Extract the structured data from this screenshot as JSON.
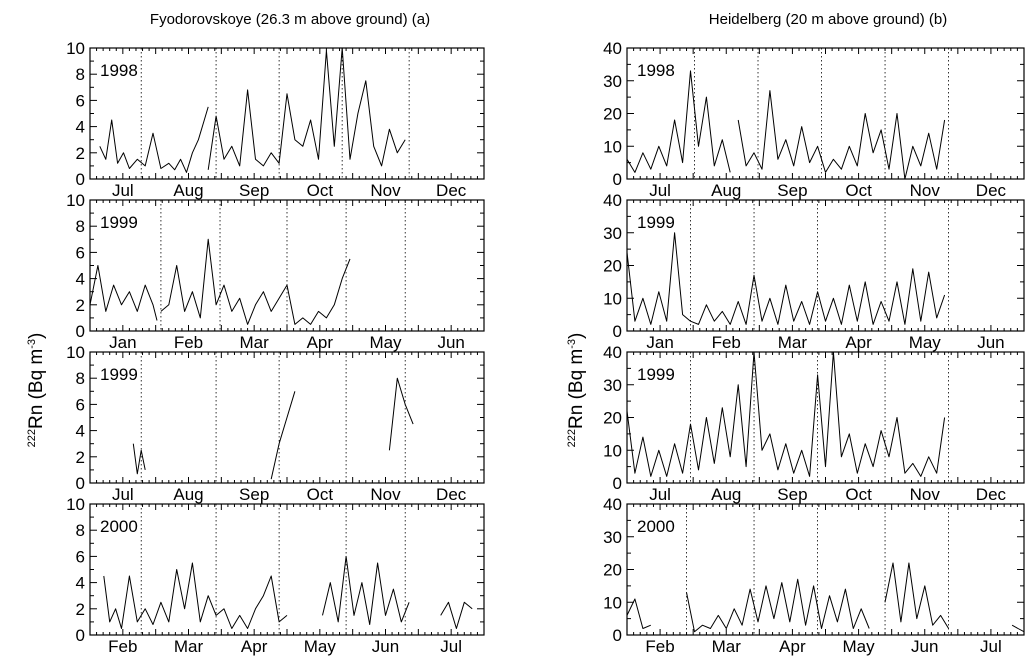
{
  "figure": {
    "panel_a_title": "Fyodorovskoye (26.3 m above ground) (a)",
    "panel_b_title": "Heidelberg (20 m above ground) (b)",
    "ylabel_sup": "222",
    "ylabel_main": "Rn (Bq m",
    "ylabel_exp": "-3",
    "ylabel_close": ")"
  },
  "chart_data": [
    {
      "type": "line",
      "title": "Fyodorovskoye (26.3 m above ground) (a)",
      "ylabel": "222Rn (Bq m-3)",
      "ylim": [
        0,
        10
      ],
      "yticks": [
        0,
        2,
        4,
        6,
        8,
        10
      ],
      "panels": [
        {
          "label": "1998",
          "months": [
            "Jul",
            "Aug",
            "Sep",
            "Oct",
            "Nov",
            "Dec"
          ],
          "series": [
            {
              "x": [
                0.25,
                0.4,
                0.55,
                0.7,
                0.85,
                1.0,
                1.2,
                1.4,
                1.6,
                1.8,
                2.0,
                2.15,
                2.3,
                2.45,
                2.6,
                2.75,
                2.9,
                3.0
              ],
              "y": [
                2.5,
                1.5,
                4.5,
                1.2,
                2.0,
                0.8,
                1.5,
                1.0,
                3.5,
                0.8,
                1.2,
                0.7,
                1.5,
                0.5,
                2.0,
                3.0,
                4.5,
                5.5
              ]
            },
            {
              "x": [
                3.0,
                3.2,
                3.4,
                3.6,
                3.8,
                4.0,
                4.2,
                4.4,
                4.6,
                4.8,
                5.0,
                5.2,
                5.4,
                5.6,
                5.8,
                6.0,
                6.2,
                6.4,
                6.6,
                6.8,
                7.0,
                7.2,
                7.4,
                7.6,
                7.8,
                8.0
              ],
              "y": [
                0.7,
                4.8,
                1.5,
                2.5,
                1.0,
                6.8,
                1.5,
                1.0,
                2.0,
                1.2,
                6.5,
                3.0,
                2.5,
                4.5,
                1.5,
                9.8,
                2.5,
                10.0,
                1.5,
                5.0,
                7.5,
                2.5,
                1.0,
                3.8,
                2.0,
                3.0
              ]
            }
          ]
        },
        {
          "label": "1999",
          "months": [
            "Jan",
            "Feb",
            "Mar",
            "Apr",
            "May",
            "Jun"
          ],
          "series": [
            {
              "x": [
                0.0,
                0.2,
                0.4,
                0.6,
                0.8,
                1.0,
                1.2,
                1.4,
                1.6,
                1.7
              ],
              "y": [
                2.0,
                5.0,
                1.5,
                3.5,
                2.0,
                3.0,
                1.5,
                3.5,
                2.0,
                0.8
              ]
            },
            {
              "x": [
                1.8,
                2.0,
                2.2,
                2.4,
                2.6,
                2.8,
                3.0,
                3.2,
                3.4,
                3.6,
                3.8,
                4.0,
                4.2,
                4.4,
                4.6,
                4.8,
                5.0,
                5.2,
                5.4,
                5.6,
                5.8,
                6.0,
                6.2,
                6.4,
                6.6
              ],
              "y": [
                1.5,
                2.0,
                5.0,
                1.5,
                3.0,
                1.0,
                7.0,
                2.0,
                3.5,
                1.5,
                2.5,
                0.5,
                2.0,
                3.0,
                1.5,
                2.5,
                3.5,
                0.5,
                1.0,
                0.5,
                1.5,
                1.0,
                2.0,
                4.0,
                5.5
              ]
            }
          ]
        },
        {
          "label": "1999",
          "months": [
            "Jul",
            "Aug",
            "Sep",
            "Oct",
            "Nov",
            "Dec"
          ],
          "series": [
            {
              "x": [
                1.1,
                1.2,
                1.3,
                1.4
              ],
              "y": [
                3.0,
                0.7,
                2.5,
                1.0
              ]
            },
            {
              "x": [
                4.6,
                4.8,
                5.0,
                5.2
              ],
              "y": [
                0.3,
                3.0,
                5.0,
                7.0
              ]
            },
            {
              "x": [
                7.6,
                7.8,
                8.0,
                8.2
              ],
              "y": [
                2.5,
                8.0,
                6.0,
                4.5
              ]
            }
          ]
        },
        {
          "label": "2000",
          "months": [
            "Feb",
            "Mar",
            "Apr",
            "May",
            "Jun",
            "Jul"
          ],
          "series": [
            {
              "x": [
                0.35,
                0.5,
                0.65,
                0.8,
                1.0,
                1.2,
                1.4,
                1.6,
                1.8,
                2.0,
                2.2,
                2.4,
                2.6,
                2.8,
                3.0,
                3.2,
                3.4,
                3.6,
                3.8,
                4.0,
                4.2,
                4.4,
                4.6,
                4.8,
                5.0
              ],
              "y": [
                4.5,
                1.0,
                2.0,
                0.5,
                4.5,
                1.0,
                2.0,
                0.8,
                2.5,
                1.0,
                5.0,
                2.0,
                5.5,
                1.0,
                3.0,
                1.5,
                2.0,
                0.5,
                1.5,
                0.5,
                2.0,
                3.0,
                4.5,
                1.0,
                1.5
              ]
            },
            {
              "x": [
                5.9,
                6.1,
                6.3,
                6.5,
                6.7,
                6.9,
                7.1,
                7.3,
                7.5,
                7.7,
                7.9,
                8.1
              ],
              "y": [
                1.5,
                4.0,
                1.0,
                6.0,
                1.5,
                4.0,
                0.8,
                5.5,
                1.5,
                3.5,
                1.0,
                2.5
              ]
            },
            {
              "x": [
                8.9,
                9.1,
                9.3,
                9.5,
                9.7
              ],
              "y": [
                1.5,
                2.5,
                0.5,
                2.5,
                2.0
              ]
            }
          ]
        }
      ]
    },
    {
      "type": "line",
      "title": "Heidelberg (20 m above ground) (b)",
      "ylabel": "222Rn (Bq m-3)",
      "ylim": [
        0,
        40
      ],
      "yticks": [
        0,
        10,
        20,
        30,
        40
      ],
      "panels": [
        {
          "label": "1998",
          "months": [
            "Jul",
            "Aug",
            "Sep",
            "Oct",
            "Nov",
            "Dec"
          ],
          "series": [
            {
              "x": [
                0.0,
                0.2,
                0.4,
                0.6,
                0.8,
                1.0,
                1.2,
                1.4,
                1.6,
                1.8,
                2.0,
                2.2,
                2.4,
                2.6
              ],
              "y": [
                6,
                2,
                8,
                3,
                10,
                4,
                18,
                5,
                33,
                10,
                25,
                4,
                12,
                2
              ]
            },
            {
              "x": [
                2.8,
                3.0,
                3.2,
                3.4,
                3.6,
                3.8,
                4.0,
                4.2,
                4.4,
                4.6,
                4.8,
                5.0,
                5.2,
                5.4,
                5.6,
                5.8,
                6.0,
                6.2,
                6.4,
                6.6,
                6.8,
                7.0,
                7.2,
                7.4,
                7.6,
                7.8,
                8.0
              ],
              "y": [
                18,
                4,
                8,
                3,
                27,
                6,
                12,
                4,
                16,
                5,
                10,
                2,
                6,
                3,
                10,
                4,
                20,
                8,
                15,
                3,
                20,
                0,
                10,
                4,
                14,
                3,
                18
              ]
            }
          ]
        },
        {
          "label": "1999",
          "months": [
            "Jan",
            "Feb",
            "Mar",
            "Apr",
            "May",
            "Jun"
          ],
          "series": [
            {
              "x": [
                0.0,
                0.2,
                0.4,
                0.6,
                0.8,
                1.0,
                1.2,
                1.4,
                1.6,
                1.8,
                2.0,
                2.2,
                2.4,
                2.6,
                2.8,
                3.0,
                3.2,
                3.4,
                3.6,
                3.8,
                4.0,
                4.2,
                4.4,
                4.6,
                4.8,
                5.0,
                5.2,
                5.4,
                5.6,
                5.8,
                6.0,
                6.2,
                6.4,
                6.6,
                6.8,
                7.0,
                7.2,
                7.4,
                7.6,
                7.8,
                8.0
              ],
              "y": [
                24,
                3,
                10,
                2,
                12,
                3,
                30,
                5,
                3,
                2,
                8,
                3,
                6,
                2,
                9,
                2,
                17,
                3,
                10,
                2,
                14,
                3,
                9,
                2,
                12,
                3,
                10,
                2,
                14,
                3,
                15,
                2,
                9,
                3,
                15,
                2,
                19,
                3,
                18,
                4,
                11
              ]
            }
          ]
        },
        {
          "label": "1999",
          "months": [
            "Jul",
            "Aug",
            "Sep",
            "Oct",
            "Nov",
            "Dec"
          ],
          "series": [
            {
              "x": [
                0.0,
                0.2,
                0.4,
                0.6,
                0.8,
                1.0,
                1.2,
                1.4,
                1.6,
                1.8,
                2.0,
                2.2,
                2.4,
                2.6,
                2.8,
                3.0,
                3.2,
                3.4,
                3.6,
                3.8,
                4.0,
                4.2,
                4.4,
                4.6,
                4.8,
                5.0,
                5.2,
                5.4,
                5.6,
                5.8,
                6.0,
                6.2,
                6.4,
                6.6,
                6.8,
                7.0,
                7.2,
                7.4,
                7.6,
                7.8,
                8.0
              ],
              "y": [
                22,
                3,
                14,
                2,
                10,
                2,
                12,
                3,
                18,
                4,
                20,
                6,
                23,
                8,
                30,
                5,
                40,
                10,
                15,
                4,
                12,
                3,
                10,
                2,
                33,
                5,
                40,
                8,
                15,
                3,
                12,
                5,
                16,
                8,
                20,
                3,
                6,
                2,
                8,
                3,
                20
              ]
            }
          ]
        },
        {
          "label": "2000",
          "months": [
            "Feb",
            "Mar",
            "Apr",
            "May",
            "Jun",
            "Jul"
          ],
          "series": [
            {
              "x": [
                0.0,
                0.2,
                0.4,
                0.6
              ],
              "y": [
                6,
                11,
                2,
                3
              ]
            },
            {
              "x": [
                1.5,
                1.7,
                1.9,
                2.1,
                2.3,
                2.5,
                2.7,
                2.9,
                3.1,
                3.3,
                3.5,
                3.7,
                3.9,
                4.1,
                4.3,
                4.5,
                4.7,
                4.9,
                5.1,
                5.3,
                5.5,
                5.7,
                5.9,
                6.1
              ],
              "y": [
                13,
                1,
                3,
                2,
                6,
                2,
                8,
                3,
                14,
                4,
                15,
                5,
                16,
                4,
                17,
                3,
                15,
                2,
                12,
                4,
                14,
                2,
                8,
                2
              ]
            },
            {
              "x": [
                6.5,
                6.7,
                6.9,
                7.1,
                7.3,
                7.5,
                7.7,
                7.9,
                8.1
              ],
              "y": [
                10,
                22,
                4,
                22,
                5,
                15,
                3,
                6,
                2
              ]
            },
            {
              "x": [
                9.7,
                9.85,
                10.0
              ],
              "y": [
                3,
                2,
                1
              ]
            }
          ]
        }
      ]
    }
  ]
}
